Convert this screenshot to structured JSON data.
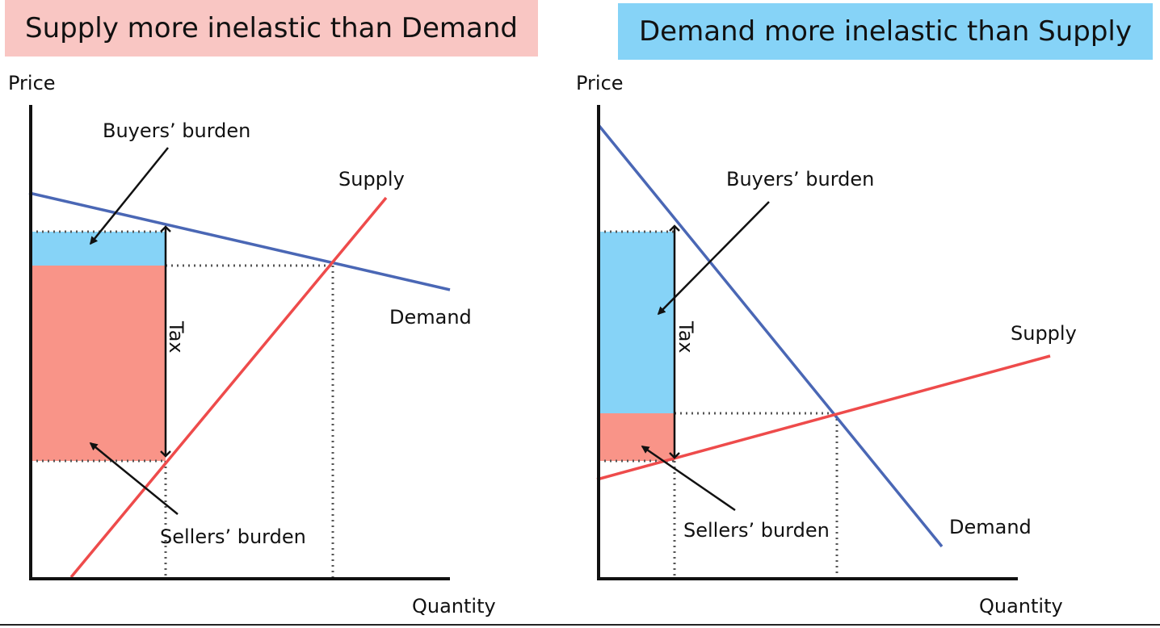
{
  "left_panel": {
    "title": "Supply more inelastic than Demand",
    "y_axis_label": "Price",
    "x_axis_label": "Quantity",
    "supply_label": "Supply",
    "demand_label": "Demand",
    "buyers_burden_label": "Buyers’ burden",
    "sellers_burden_label": "Sellers’ burden",
    "tax_label": "Tax"
  },
  "right_panel": {
    "title": "Demand more inelastic than Supply",
    "y_axis_label": "Price",
    "x_axis_label": "Quantity",
    "supply_label": "Supply",
    "demand_label": "Demand",
    "buyers_burden_label": "Buyers’ burden",
    "sellers_burden_label": "Sellers’ burden",
    "tax_label": "Tax"
  },
  "colors": {
    "supply": "#ee4b4b",
    "demand": "#4a67b5",
    "buyers_burden": "#86d3f7",
    "sellers_burden": "#f99488",
    "left_banner": "#f9c6c3",
    "right_banner": "#86d3f7"
  }
}
